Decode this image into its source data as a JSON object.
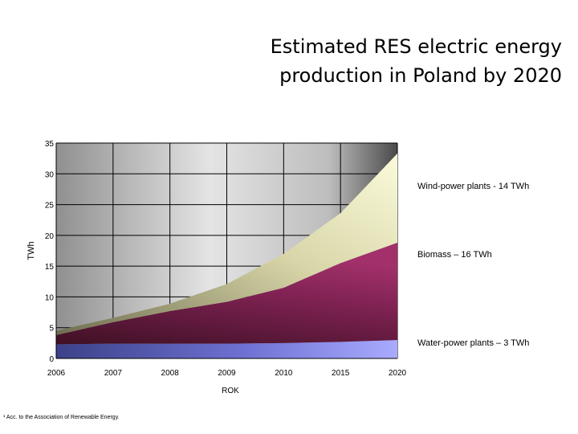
{
  "title": {
    "line1": "Estimated RES electric energy",
    "line2": "production in Poland by 2020"
  },
  "footnote": "¹ Acc. to the Association of Renewable Energy.",
  "chart_data": {
    "type": "area",
    "stacked": true,
    "x": [
      "2006",
      "2007",
      "2008",
      "2009",
      "2010",
      "2015",
      "2020"
    ],
    "xlabel": "ROK",
    "ylabel": "TWh",
    "ylim": [
      0,
      35
    ],
    "yticks": [
      "0",
      "5",
      "10",
      "15",
      "20",
      "25",
      "30",
      "35"
    ],
    "grid": true,
    "series": [
      {
        "name": "Water-power plants – 3 TWh",
        "values": [
          2.3,
          2.4,
          2.4,
          2.4,
          2.5,
          2.7,
          3.0
        ],
        "color": "#7b7de0"
      },
      {
        "name": "Biomass – 16 TWh",
        "values": [
          1.5,
          3.5,
          5.3,
          6.8,
          9.0,
          12.8,
          15.8
        ],
        "color": "#93295e"
      },
      {
        "name": "Wind-power plants - 14 TWh",
        "values": [
          0.7,
          0.7,
          1.2,
          2.9,
          5.5,
          8.1,
          14.5
        ],
        "color": "#f6f5c6"
      }
    ]
  }
}
